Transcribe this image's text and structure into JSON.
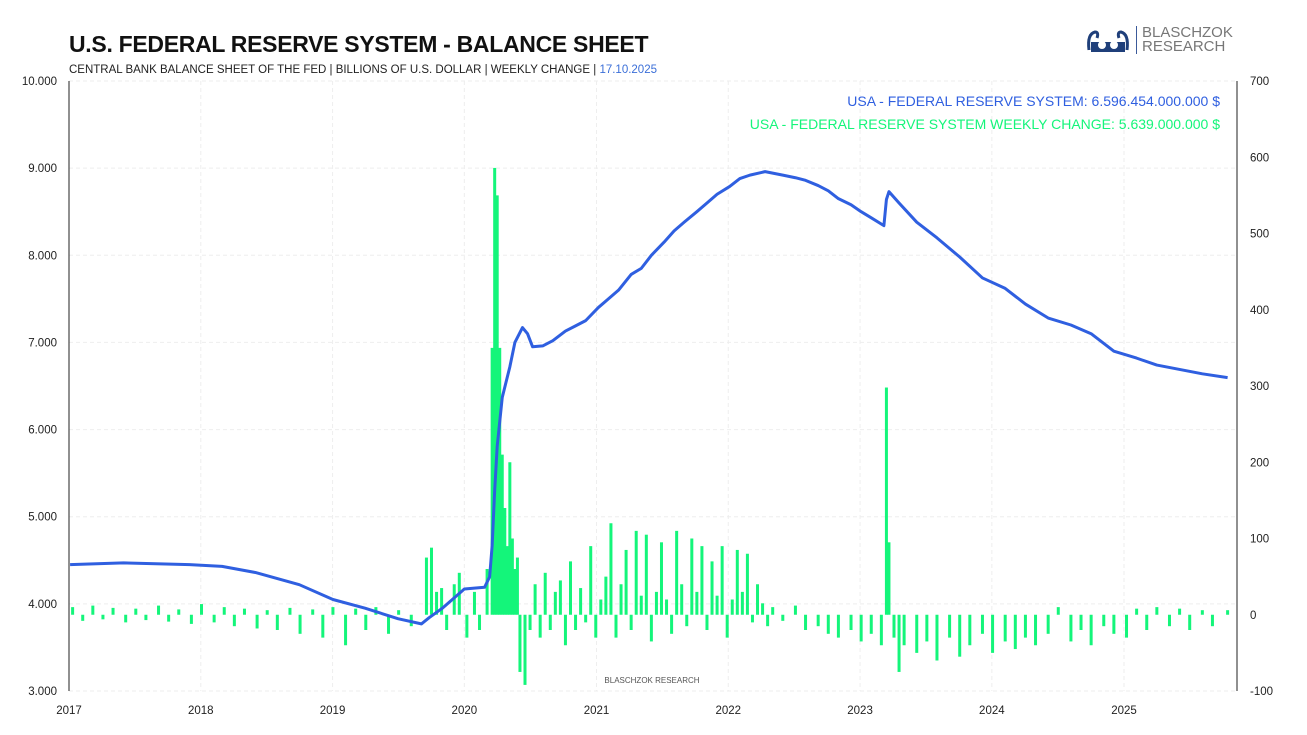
{
  "header": {
    "title": "U.S. FEDERAL RESERVE SYSTEM - BALANCE SHEET",
    "subtitle": "CENTRAL BANK BALANCE SHEET OF THE FED | BILLIONS OF U.S. DOLLAR | WEEKLY CHANGE | ",
    "date": "17.10.2025"
  },
  "logo": {
    "line1": "BLASCHZOK",
    "line2": "RESEARCH"
  },
  "watermark": "BLASCHZOK  RESEARCH",
  "colors": {
    "balance": "#2f5fe0",
    "change": "#14f57a"
  },
  "chart_data": {
    "type": "line+bar",
    "x_ticks": [
      "2017",
      "2018",
      "2019",
      "2020",
      "2021",
      "2022",
      "2023",
      "2024",
      "2025"
    ],
    "xlim": [
      "2017-01-01",
      "2025-11-10"
    ],
    "y_left": {
      "ticks": [
        "3.000",
        "4.000",
        "5.000",
        "6.000",
        "7.000",
        "8.000",
        "9.000",
        "10.000"
      ],
      "lim": [
        3000,
        10000
      ]
    },
    "y_right": {
      "ticks": [
        "-100",
        "0",
        "100",
        "200",
        "300",
        "400",
        "500",
        "600",
        "700"
      ],
      "lim": [
        -100,
        700
      ]
    },
    "grid": true,
    "legend_placement": "top-right",
    "series": [
      {
        "name": "USA - FEDERAL RESERVE SYSTEM: 6.596.454.000.000 $",
        "axis": "left",
        "type": "line",
        "points": [
          [
            "2017-01-04",
            4450
          ],
          [
            "2017-06-01",
            4470
          ],
          [
            "2017-12-01",
            4450
          ],
          [
            "2018-03-01",
            4430
          ],
          [
            "2018-06-01",
            4360
          ],
          [
            "2018-10-01",
            4220
          ],
          [
            "2019-01-02",
            4050
          ],
          [
            "2019-04-01",
            3950
          ],
          [
            "2019-07-01",
            3830
          ],
          [
            "2019-09-04",
            3770
          ],
          [
            "2019-09-25",
            3840
          ],
          [
            "2019-11-01",
            3950
          ],
          [
            "2020-01-01",
            4170
          ],
          [
            "2020-02-26",
            4190
          ],
          [
            "2020-03-11",
            4310
          ],
          [
            "2020-03-18",
            4670
          ],
          [
            "2020-03-25",
            5300
          ],
          [
            "2020-04-01",
            5810
          ],
          [
            "2020-04-15",
            6370
          ],
          [
            "2020-05-06",
            6720
          ],
          [
            "2020-05-20",
            7000
          ],
          [
            "2020-06-10",
            7170
          ],
          [
            "2020-06-24",
            7100
          ],
          [
            "2020-07-08",
            6950
          ],
          [
            "2020-08-05",
            6960
          ],
          [
            "2020-09-02",
            7020
          ],
          [
            "2020-10-07",
            7130
          ],
          [
            "2020-11-04",
            7190
          ],
          [
            "2020-12-02",
            7250
          ],
          [
            "2021-01-06",
            7400
          ],
          [
            "2021-02-03",
            7500
          ],
          [
            "2021-03-03",
            7600
          ],
          [
            "2021-04-07",
            7780
          ],
          [
            "2021-05-05",
            7850
          ],
          [
            "2021-06-02",
            8000
          ],
          [
            "2021-07-07",
            8150
          ],
          [
            "2021-08-04",
            8280
          ],
          [
            "2021-09-01",
            8380
          ],
          [
            "2021-10-06",
            8500
          ],
          [
            "2021-11-03",
            8600
          ],
          [
            "2021-12-01",
            8700
          ],
          [
            "2022-01-05",
            8790
          ],
          [
            "2022-02-02",
            8880
          ],
          [
            "2022-03-02",
            8920
          ],
          [
            "2022-04-13",
            8960
          ],
          [
            "2022-06-01",
            8920
          ],
          [
            "2022-07-06",
            8890
          ],
          [
            "2022-08-03",
            8860
          ],
          [
            "2022-09-07",
            8800
          ],
          [
            "2022-10-05",
            8740
          ],
          [
            "2022-11-02",
            8650
          ],
          [
            "2022-12-07",
            8580
          ],
          [
            "2023-01-04",
            8500
          ],
          [
            "2023-02-01",
            8430
          ],
          [
            "2023-03-08",
            8340
          ],
          [
            "2023-03-15",
            8640
          ],
          [
            "2023-03-22",
            8730
          ],
          [
            "2023-04-19",
            8600
          ],
          [
            "2023-06-07",
            8380
          ],
          [
            "2023-08-02",
            8200
          ],
          [
            "2023-10-04",
            7980
          ],
          [
            "2023-12-06",
            7740
          ],
          [
            "2024-02-07",
            7620
          ],
          [
            "2024-04-03",
            7440
          ],
          [
            "2024-06-05",
            7280
          ],
          [
            "2024-08-07",
            7200
          ],
          [
            "2024-10-02",
            7100
          ],
          [
            "2024-12-04",
            6900
          ],
          [
            "2025-02-05",
            6820
          ],
          [
            "2025-04-02",
            6740
          ],
          [
            "2025-06-04",
            6690
          ],
          [
            "2025-08-06",
            6640
          ],
          [
            "2025-10-15",
            6596
          ]
        ]
      },
      {
        "name": "USA - FEDERAL RESERVE SYSTEM WEEKLY CHANGE: 5.639.000.000 $",
        "axis": "right",
        "type": "bar",
        "points": [
          [
            "2017-01-11",
            10
          ],
          [
            "2017-02-08",
            -8
          ],
          [
            "2017-03-08",
            12
          ],
          [
            "2017-04-05",
            -6
          ],
          [
            "2017-05-03",
            9
          ],
          [
            "2017-06-07",
            -10
          ],
          [
            "2017-07-05",
            8
          ],
          [
            "2017-08-02",
            -7
          ],
          [
            "2017-09-06",
            12
          ],
          [
            "2017-10-04",
            -9
          ],
          [
            "2017-11-01",
            7
          ],
          [
            "2017-12-06",
            -12
          ],
          [
            "2018-01-03",
            14
          ],
          [
            "2018-02-07",
            -10
          ],
          [
            "2018-03-07",
            10
          ],
          [
            "2018-04-04",
            -15
          ],
          [
            "2018-05-02",
            8
          ],
          [
            "2018-06-06",
            -18
          ],
          [
            "2018-07-04",
            6
          ],
          [
            "2018-08-01",
            -20
          ],
          [
            "2018-09-05",
            9
          ],
          [
            "2018-10-03",
            -25
          ],
          [
            "2018-11-07",
            7
          ],
          [
            "2018-12-05",
            -30
          ],
          [
            "2019-01-02",
            10
          ],
          [
            "2019-02-06",
            -40
          ],
          [
            "2019-03-06",
            8
          ],
          [
            "2019-04-03",
            -20
          ],
          [
            "2019-05-01",
            10
          ],
          [
            "2019-06-05",
            -25
          ],
          [
            "2019-07-03",
            6
          ],
          [
            "2019-08-07",
            -15
          ],
          [
            "2019-09-18",
            75
          ],
          [
            "2019-10-02",
            88
          ],
          [
            "2019-10-16",
            30
          ],
          [
            "2019-10-30",
            35
          ],
          [
            "2019-11-13",
            -20
          ],
          [
            "2019-12-04",
            40
          ],
          [
            "2019-12-18",
            55
          ],
          [
            "2020-01-08",
            -30
          ],
          [
            "2020-01-29",
            30
          ],
          [
            "2020-02-12",
            -20
          ],
          [
            "2020-03-04",
            60
          ],
          [
            "2020-03-18",
            350
          ],
          [
            "2020-03-25",
            586
          ],
          [
            "2020-04-01",
            550
          ],
          [
            "2020-04-08",
            350
          ],
          [
            "2020-04-15",
            210
          ],
          [
            "2020-04-22",
            140
          ],
          [
            "2020-04-29",
            90
          ],
          [
            "2020-05-06",
            200
          ],
          [
            "2020-05-13",
            100
          ],
          [
            "2020-05-20",
            60
          ],
          [
            "2020-05-27",
            75
          ],
          [
            "2020-06-03",
            -75
          ],
          [
            "2020-06-17",
            -92
          ],
          [
            "2020-07-01",
            -20
          ],
          [
            "2020-07-15",
            40
          ],
          [
            "2020-07-29",
            -30
          ],
          [
            "2020-08-12",
            55
          ],
          [
            "2020-08-26",
            -20
          ],
          [
            "2020-09-09",
            30
          ],
          [
            "2020-09-23",
            45
          ],
          [
            "2020-10-07",
            -40
          ],
          [
            "2020-10-21",
            70
          ],
          [
            "2020-11-04",
            -20
          ],
          [
            "2020-11-18",
            35
          ],
          [
            "2020-12-02",
            -10
          ],
          [
            "2020-12-16",
            90
          ],
          [
            "2020-12-30",
            -30
          ],
          [
            "2021-01-13",
            20
          ],
          [
            "2021-01-27",
            50
          ],
          [
            "2021-02-10",
            120
          ],
          [
            "2021-02-24",
            -30
          ],
          [
            "2021-03-10",
            40
          ],
          [
            "2021-03-24",
            85
          ],
          [
            "2021-04-07",
            -20
          ],
          [
            "2021-04-21",
            110
          ],
          [
            "2021-05-05",
            25
          ],
          [
            "2021-05-19",
            105
          ],
          [
            "2021-06-02",
            -35
          ],
          [
            "2021-06-16",
            30
          ],
          [
            "2021-06-30",
            95
          ],
          [
            "2021-07-14",
            20
          ],
          [
            "2021-07-28",
            -25
          ],
          [
            "2021-08-11",
            110
          ],
          [
            "2021-08-25",
            40
          ],
          [
            "2021-09-08",
            -15
          ],
          [
            "2021-09-22",
            100
          ],
          [
            "2021-10-06",
            30
          ],
          [
            "2021-10-20",
            90
          ],
          [
            "2021-11-03",
            -20
          ],
          [
            "2021-11-17",
            70
          ],
          [
            "2021-12-01",
            25
          ],
          [
            "2021-12-15",
            90
          ],
          [
            "2021-12-29",
            -30
          ],
          [
            "2022-01-12",
            20
          ],
          [
            "2022-01-26",
            85
          ],
          [
            "2022-02-09",
            30
          ],
          [
            "2022-02-23",
            80
          ],
          [
            "2022-03-09",
            -10
          ],
          [
            "2022-03-23",
            40
          ],
          [
            "2022-04-06",
            15
          ],
          [
            "2022-04-20",
            -15
          ],
          [
            "2022-05-04",
            10
          ],
          [
            "2022-06-01",
            -8
          ],
          [
            "2022-07-06",
            12
          ],
          [
            "2022-08-03",
            -20
          ],
          [
            "2022-09-07",
            -15
          ],
          [
            "2022-10-05",
            -25
          ],
          [
            "2022-11-02",
            -30
          ],
          [
            "2022-12-07",
            -20
          ],
          [
            "2023-01-04",
            -35
          ],
          [
            "2023-02-01",
            -25
          ],
          [
            "2023-03-01",
            -40
          ],
          [
            "2023-03-15",
            298
          ],
          [
            "2023-03-22",
            95
          ],
          [
            "2023-04-05",
            -30
          ],
          [
            "2023-04-19",
            -75
          ],
          [
            "2023-05-03",
            -40
          ],
          [
            "2023-06-07",
            -50
          ],
          [
            "2023-07-05",
            -35
          ],
          [
            "2023-08-02",
            -60
          ],
          [
            "2023-09-06",
            -30
          ],
          [
            "2023-10-04",
            -55
          ],
          [
            "2023-11-01",
            -40
          ],
          [
            "2023-12-06",
            -25
          ],
          [
            "2024-01-03",
            -50
          ],
          [
            "2024-02-07",
            -35
          ],
          [
            "2024-03-06",
            -45
          ],
          [
            "2024-04-03",
            -30
          ],
          [
            "2024-05-01",
            -40
          ],
          [
            "2024-06-05",
            -25
          ],
          [
            "2024-07-03",
            10
          ],
          [
            "2024-08-07",
            -35
          ],
          [
            "2024-09-04",
            -20
          ],
          [
            "2024-10-02",
            -40
          ],
          [
            "2024-11-06",
            -15
          ],
          [
            "2024-12-04",
            -25
          ],
          [
            "2025-01-08",
            -30
          ],
          [
            "2025-02-05",
            8
          ],
          [
            "2025-03-05",
            -20
          ],
          [
            "2025-04-02",
            10
          ],
          [
            "2025-05-07",
            -15
          ],
          [
            "2025-06-04",
            8
          ],
          [
            "2025-07-02",
            -20
          ],
          [
            "2025-08-06",
            6
          ],
          [
            "2025-09-03",
            -15
          ],
          [
            "2025-10-15",
            6
          ]
        ]
      }
    ]
  }
}
